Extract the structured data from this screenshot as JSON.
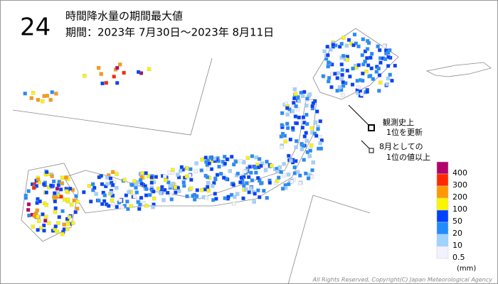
{
  "header": {
    "hour": "24",
    "title": "時間降水量の期間最大値",
    "period": "期間：2023年 7月30日～2023年 8月11日"
  },
  "legend": {
    "levels": [
      400,
      300,
      200,
      100,
      50,
      20,
      10,
      0.5
    ],
    "colors": [
      "#b4006a",
      "#ff2800",
      "#ff9900",
      "#faf500",
      "#0041ff",
      "#218cff",
      "#a0d2ff",
      "#f2f2ff"
    ],
    "unit": "(mm)"
  },
  "notes": [
    {
      "lines": [
        "観測史上",
        "1位を更新"
      ]
    },
    {
      "lines": [
        "8月としての",
        "1位の値以上"
      ]
    }
  ],
  "copyright": "All Rights Reserved, Copyright(C) Japan Meteorological Agency"
}
